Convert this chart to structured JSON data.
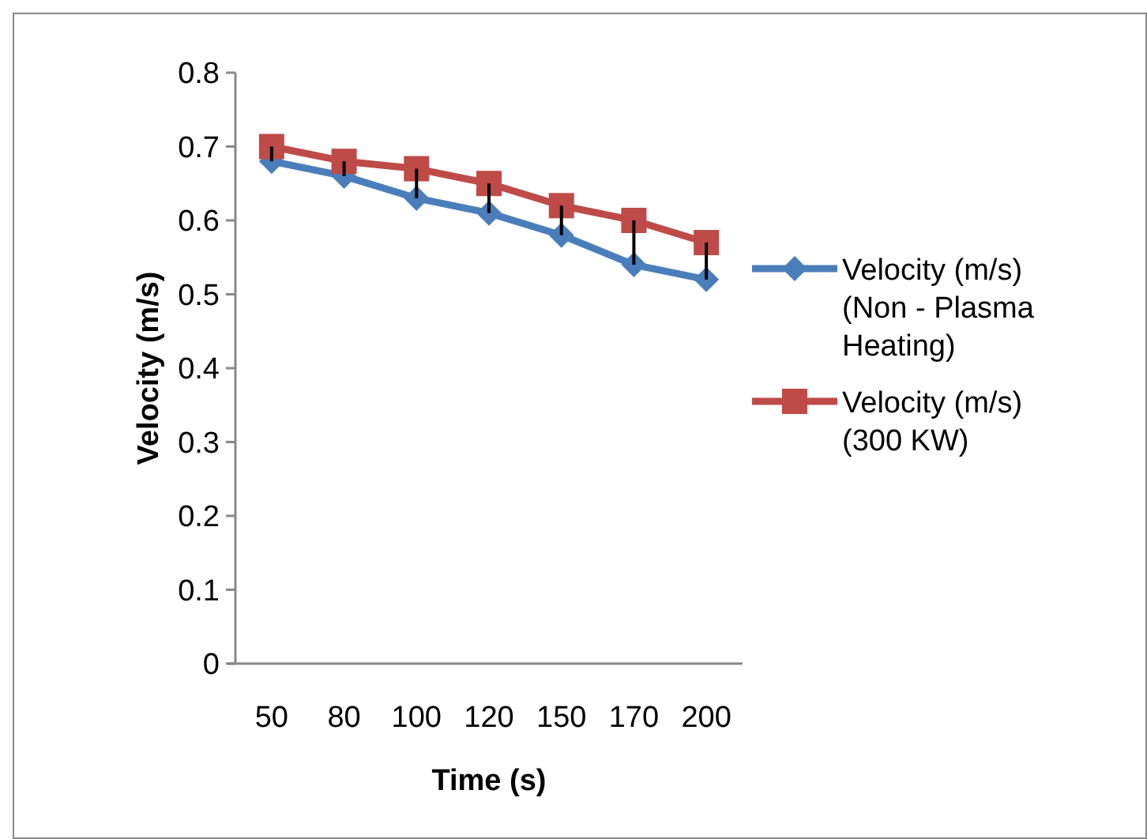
{
  "chart_data": {
    "type": "line",
    "xlabel": "Time (s)",
    "ylabel": "Velocity (m/s)",
    "categories": [
      "50",
      "80",
      "100",
      "120",
      "150",
      "170",
      "200"
    ],
    "ylim": [
      0,
      0.8
    ],
    "yticks": [
      0,
      0.1,
      0.2,
      0.3,
      0.4,
      0.5,
      0.6,
      0.7,
      0.8
    ],
    "grid": false,
    "legend": "right",
    "series": [
      {
        "name": "Velocity (m/s) (Non - Plasma Heating)",
        "color": "#4a7ebb",
        "marker": "diamond",
        "values": [
          0.68,
          0.66,
          0.63,
          0.61,
          0.58,
          0.54,
          0.52
        ]
      },
      {
        "name": "Velocity (m/s) (300 KW)",
        "color": "#be4b48",
        "marker": "square",
        "values": [
          0.7,
          0.68,
          0.67,
          0.65,
          0.62,
          0.6,
          0.57
        ],
        "errors": [
          [
            0.68,
            0.7
          ],
          [
            0.66,
            0.68
          ],
          [
            0.63,
            0.67
          ],
          [
            0.61,
            0.65
          ],
          [
            0.58,
            0.62
          ],
          [
            0.54,
            0.6
          ],
          [
            0.52,
            0.57
          ]
        ]
      }
    ]
  }
}
